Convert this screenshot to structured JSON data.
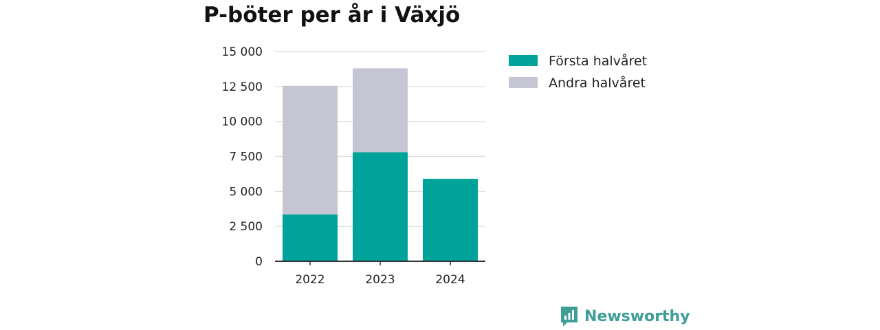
{
  "chart_data": {
    "type": "bar",
    "stacked": true,
    "title": "P-böter per år i Växjö",
    "xlabel": "",
    "ylabel": "",
    "categories": [
      "2022",
      "2023",
      "2024"
    ],
    "series": [
      {
        "name": "Första halvåret",
        "color": "#00a39a",
        "values": [
          3350,
          7800,
          5900
        ]
      },
      {
        "name": "Andra halvåret",
        "color": "#c6c5d3",
        "values": [
          9200,
          6000,
          0
        ]
      }
    ],
    "ylim": [
      0,
      15000
    ],
    "yticks": [
      0,
      2500,
      5000,
      7500,
      10000,
      12500,
      15000
    ],
    "ytick_labels": [
      "0",
      "2 500",
      "5 000",
      "7 500",
      "10 000",
      "12 500",
      "15 000"
    ],
    "grid": true,
    "legend_position": "top-right"
  },
  "brand": {
    "name": "Newsworthy",
    "icon": "newsworthy-logo-icon",
    "color": "#3f9e98"
  }
}
